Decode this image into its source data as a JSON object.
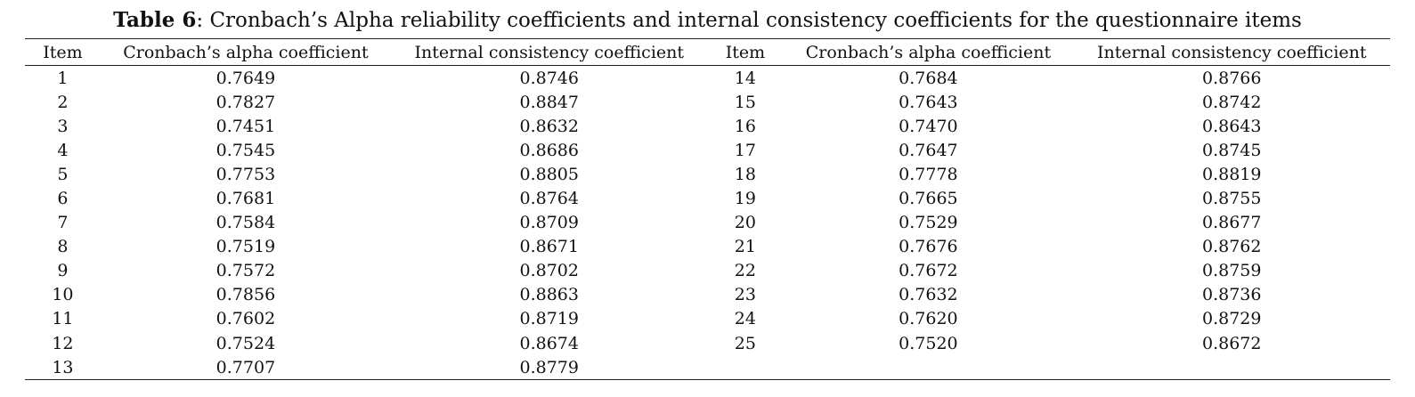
{
  "caption": {
    "label": "Table 6",
    "text": ": Cronbach’s Alpha reliability coefficients and internal consistency coefficients for the questionnaire items"
  },
  "table": {
    "headers": [
      "Item",
      "Cronbach’s alpha coefficient",
      "Internal consistency coefficient",
      "Item",
      "Cronbach’s alpha coefficient",
      "Internal consistency coefficient"
    ],
    "rows": [
      [
        "1",
        "0.7649",
        "0.8746",
        "14",
        "0.7684",
        "0.8766"
      ],
      [
        "2",
        "0.7827",
        "0.8847",
        "15",
        "0.7643",
        "0.8742"
      ],
      [
        "3",
        "0.7451",
        "0.8632",
        "16",
        "0.7470",
        "0.8643"
      ],
      [
        "4",
        "0.7545",
        "0.8686",
        "17",
        "0.7647",
        "0.8745"
      ],
      [
        "5",
        "0.7753",
        "0.8805",
        "18",
        "0.7778",
        "0.8819"
      ],
      [
        "6",
        "0.7681",
        "0.8764",
        "19",
        "0.7665",
        "0.8755"
      ],
      [
        "7",
        "0.7584",
        "0.8709",
        "20",
        "0.7529",
        "0.8677"
      ],
      [
        "8",
        "0.7519",
        "0.8671",
        "21",
        "0.7676",
        "0.8762"
      ],
      [
        "9",
        "0.7572",
        "0.8702",
        "22",
        "0.7672",
        "0.8759"
      ],
      [
        "10",
        "0.7856",
        "0.8863",
        "23",
        "0.7632",
        "0.8736"
      ],
      [
        "11",
        "0.7602",
        "0.8719",
        "24",
        "0.7620",
        "0.8729"
      ],
      [
        "12",
        "0.7524",
        "0.8674",
        "25",
        "0.7520",
        "0.8672"
      ],
      [
        "13",
        "0.7707",
        "0.8779",
        "",
        "",
        ""
      ]
    ]
  }
}
